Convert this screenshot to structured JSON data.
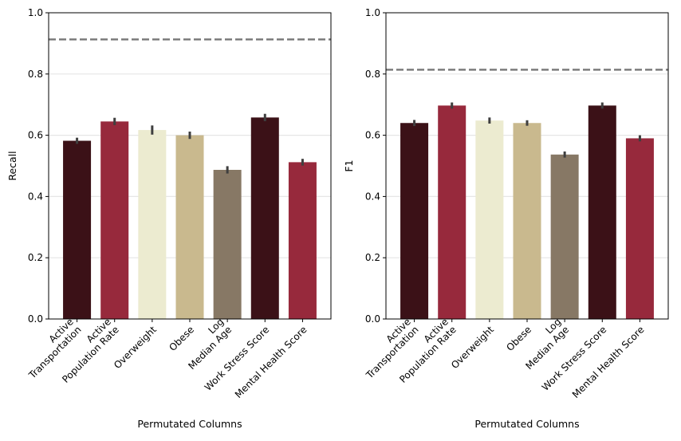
{
  "chart_data": [
    {
      "type": "bar",
      "categories": [
        "Active\nTransportation",
        "Active\nPopulation Rate",
        "Overweight",
        "Obese",
        "Log\nMedian Age",
        "Work Stress Score",
        "Mental Health Score"
      ],
      "values": [
        0.582,
        0.645,
        0.617,
        0.6,
        0.487,
        0.658,
        0.512
      ],
      "errors": [
        0.01,
        0.012,
        0.015,
        0.012,
        0.012,
        0.012,
        0.011
      ],
      "colors": [
        "#3b1117",
        "#97293c",
        "#ecebd0",
        "#c9b98e",
        "#877865",
        "#3b1117",
        "#97293c"
      ],
      "reference_line": 0.913,
      "ylabel": "Recall",
      "xlabel": "Permutated Columns",
      "ylim": [
        0,
        1.0
      ],
      "yticks": [
        "0.0",
        "0.2",
        "0.4",
        "0.6",
        "0.8",
        "1.0"
      ],
      "grid": true
    },
    {
      "type": "bar",
      "categories": [
        "Active\nTransportation",
        "Active\nPopulation Rate",
        "Overweight",
        "Obese",
        "Log\nMedian Age",
        "Work Stress Score",
        "Mental Health Score"
      ],
      "values": [
        0.64,
        0.697,
        0.648,
        0.64,
        0.537,
        0.697,
        0.59
      ],
      "errors": [
        0.01,
        0.01,
        0.01,
        0.009,
        0.01,
        0.01,
        0.01
      ],
      "colors": [
        "#3b1117",
        "#97293c",
        "#ecebd0",
        "#c9b98e",
        "#877865",
        "#3b1117",
        "#97293c"
      ],
      "reference_line": 0.814,
      "ylabel": "F1",
      "xlabel": "Permutated Columns",
      "ylim": [
        0,
        1.0
      ],
      "yticks": [
        "0.0",
        "0.2",
        "0.4",
        "0.6",
        "0.8",
        "1.0"
      ],
      "grid": true
    }
  ]
}
